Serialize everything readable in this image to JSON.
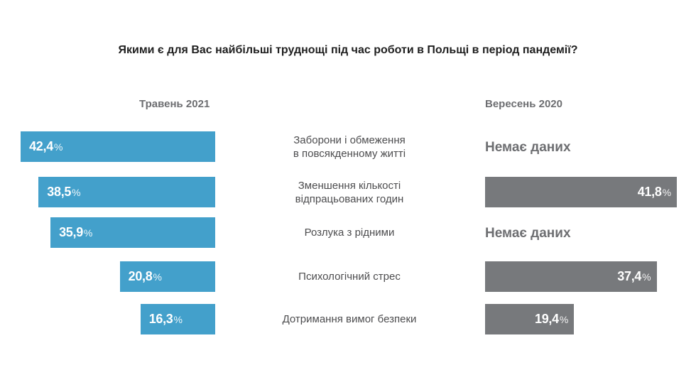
{
  "chart_data": {
    "type": "bar",
    "title": "Якими є для Вас найбільші труднощі під час роботи в Польщі в період пандемії?",
    "unit": "%",
    "xlim": [
      0,
      100
    ],
    "categories": [
      [
        "Заборони і обмеження",
        "в повсякденному житті"
      ],
      [
        "Зменшення кількості",
        "відпрацьованих годин"
      ],
      [
        "Розлука з рідними"
      ],
      [
        "Психологічний стрес"
      ],
      [
        "Дотримання вимог безпеки"
      ]
    ],
    "series": [
      {
        "name": "Травень 2021",
        "color": "#43a0cb",
        "values": [
          42.4,
          38.5,
          35.9,
          20.8,
          16.3
        ],
        "labels": [
          "42,4",
          "38,5",
          "35,9",
          "20,8",
          "16,3"
        ]
      },
      {
        "name": "Вересень 2020",
        "color": "#77797c",
        "values": [
          null,
          41.8,
          null,
          37.4,
          19.4
        ],
        "labels": [
          "Немає даних",
          "41,8",
          "Немає даних",
          "37,4",
          "19,4"
        ]
      }
    ]
  }
}
